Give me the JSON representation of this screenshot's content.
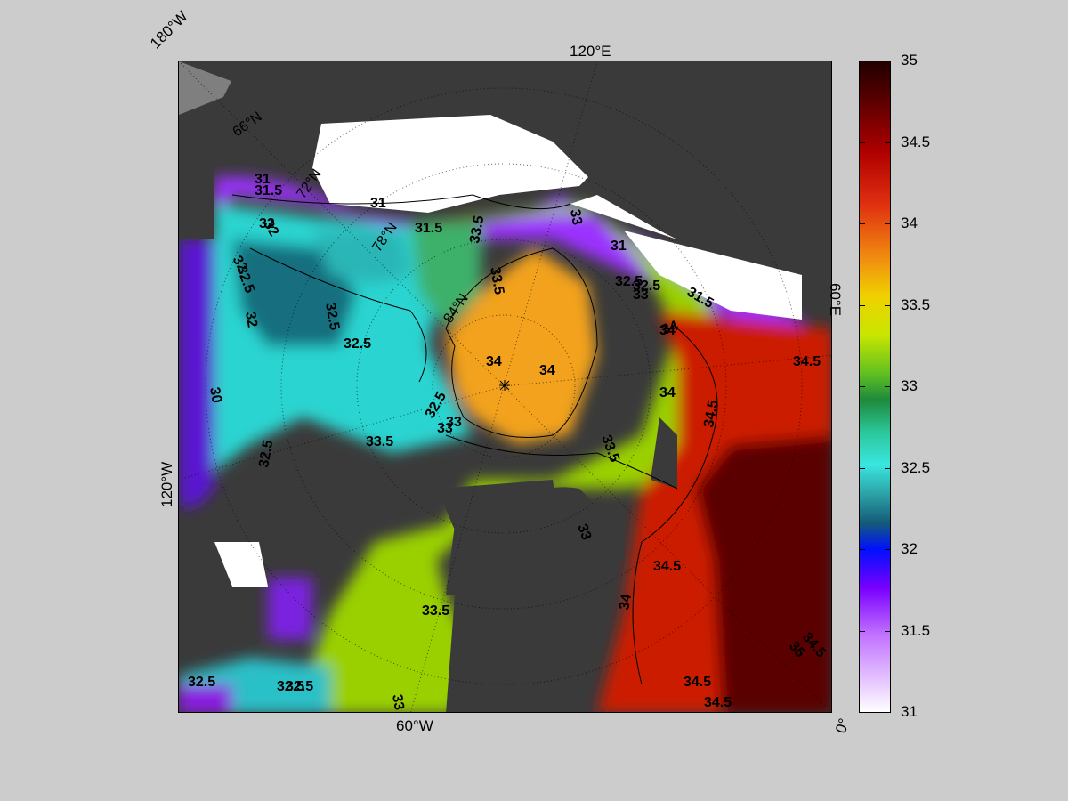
{
  "map": {
    "lon_labels": {
      "w180": "180°W",
      "e120": "120°E",
      "e60": "60°E",
      "w120": "120°W",
      "w60": "60°W",
      "zero": "0°"
    },
    "lat_labels": {
      "n66": "66°N",
      "n72": "72°N",
      "n78": "78°N",
      "n84": "84°N"
    },
    "contour_labels": [
      "31",
      "31.5",
      "31",
      "31.5",
      "32",
      "32",
      "32.5",
      "32",
      "30",
      "32.5",
      "32.5",
      "33.5",
      "32.5",
      "33",
      "33.5",
      "34",
      "34",
      "34",
      "34",
      "34.5",
      "33.5",
      "33",
      "34.5",
      "34",
      "33.5",
      "33",
      "34.5",
      "34.5",
      "34.5",
      "32.5",
      "32.5",
      "33",
      "32.5",
      "33",
      "31",
      "32.5",
      "33.5",
      "34",
      "31.5",
      "33",
      "32",
      "32.5",
      "35",
      "32.5",
      "34.5"
    ],
    "colors": {
      "land": "#3a3a3a",
      "ice": "#ffffff",
      "frame": "#000000",
      "background": "#cccccc"
    }
  },
  "colorbar": {
    "ticks": [
      "35",
      "34.5",
      "34",
      "33.5",
      "33",
      "32.5",
      "32",
      "31.5",
      "31"
    ],
    "range": [
      31,
      35
    ]
  }
}
